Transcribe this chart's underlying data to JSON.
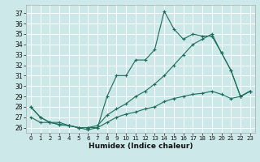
{
  "xlabel": "Humidex (Indice chaleur)",
  "bg_color": "#cde8e8",
  "line_color": "#1a6b5a",
  "grid_color": "#ffffff",
  "xlim": [
    -0.5,
    23.5
  ],
  "ylim": [
    25.5,
    37.8
  ],
  "yticks": [
    26,
    27,
    28,
    29,
    30,
    31,
    32,
    33,
    34,
    35,
    36,
    37
  ],
  "xticks": [
    0,
    1,
    2,
    3,
    4,
    5,
    6,
    7,
    8,
    9,
    10,
    11,
    12,
    13,
    14,
    15,
    16,
    17,
    18,
    19,
    20,
    21,
    22,
    23
  ],
  "line1_x": [
    0,
    1,
    2,
    3,
    4,
    5,
    6,
    7,
    8,
    9,
    10,
    11,
    12,
    13,
    14,
    15,
    16,
    17,
    18,
    19,
    20,
    21,
    22,
    23
  ],
  "line1_y": [
    28.0,
    27.0,
    26.5,
    26.5,
    26.2,
    26.0,
    25.8,
    26.0,
    29.0,
    31.0,
    31.0,
    32.5,
    32.5,
    33.5,
    37.2,
    35.5,
    34.5,
    35.0,
    34.8,
    34.8,
    33.2,
    31.5,
    29.0,
    29.5
  ],
  "line2_x": [
    0,
    1,
    2,
    3,
    4,
    5,
    6,
    7,
    8,
    9,
    10,
    11,
    12,
    13,
    14,
    15,
    16,
    17,
    18,
    19,
    20,
    21,
    22,
    23
  ],
  "line2_y": [
    28.0,
    27.0,
    26.5,
    26.3,
    26.2,
    26.0,
    26.0,
    26.2,
    27.2,
    27.8,
    28.3,
    29.0,
    29.5,
    30.2,
    31.0,
    32.0,
    33.0,
    34.0,
    34.5,
    35.0,
    33.2,
    31.5,
    29.0,
    29.5
  ],
  "line3_x": [
    0,
    1,
    2,
    3,
    4,
    5,
    6,
    7,
    8,
    9,
    10,
    11,
    12,
    13,
    14,
    15,
    16,
    17,
    18,
    19,
    20,
    21,
    22,
    23
  ],
  "line3_y": [
    27.0,
    26.5,
    26.5,
    26.3,
    26.2,
    26.0,
    26.0,
    26.0,
    26.5,
    27.0,
    27.3,
    27.5,
    27.8,
    28.0,
    28.5,
    28.8,
    29.0,
    29.2,
    29.3,
    29.5,
    29.2,
    28.8,
    29.0,
    29.5
  ]
}
